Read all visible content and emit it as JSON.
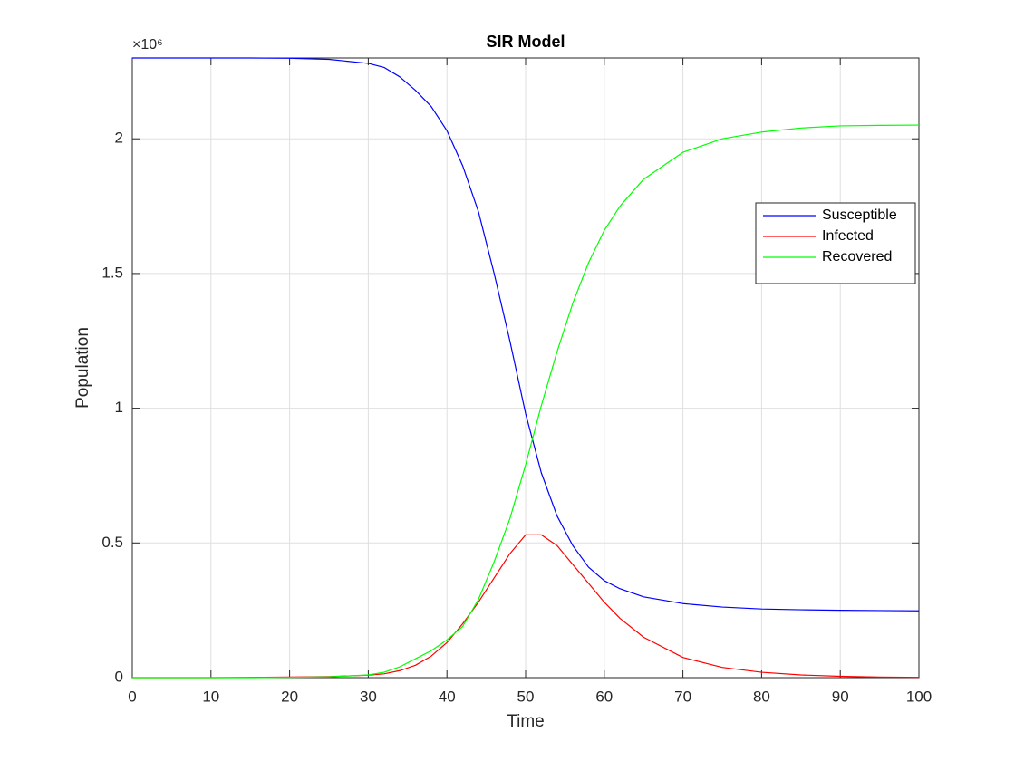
{
  "chart_data": {
    "type": "line",
    "title": "SIR Model",
    "x_label": "Time",
    "y_label": "Population",
    "y_multiplier": "×10⁶",
    "x": [
      0,
      5,
      10,
      15,
      20,
      25,
      30,
      32,
      34,
      36,
      38,
      40,
      42,
      44,
      46,
      48,
      50,
      52,
      54,
      56,
      58,
      60,
      62,
      65,
      70,
      75,
      80,
      85,
      90,
      95,
      100
    ],
    "series": [
      {
        "name": "Susceptible",
        "color": "#0000ff",
        "values": [
          2.3,
          2.3,
          2.3,
          2.3,
          2.299,
          2.295,
          2.28,
          2.265,
          2.23,
          2.18,
          2.12,
          2.03,
          1.9,
          1.73,
          1.5,
          1.25,
          0.98,
          0.76,
          0.6,
          0.49,
          0.41,
          0.36,
          0.33,
          0.3,
          0.275,
          0.262,
          0.255,
          0.252,
          0.25,
          0.249,
          0.248
        ]
      },
      {
        "name": "Infected",
        "color": "#ff0000",
        "values": [
          0,
          0,
          0,
          0.001,
          0.002,
          0.004,
          0.009,
          0.014,
          0.026,
          0.046,
          0.08,
          0.13,
          0.2,
          0.28,
          0.37,
          0.46,
          0.53,
          0.53,
          0.49,
          0.42,
          0.35,
          0.28,
          0.22,
          0.15,
          0.075,
          0.038,
          0.02,
          0.01,
          0.005,
          0.002,
          0.001
        ]
      },
      {
        "name": "Recovered",
        "color": "#00ff00",
        "values": [
          0,
          0,
          0,
          0,
          0.001,
          0.003,
          0.01,
          0.02,
          0.04,
          0.07,
          0.1,
          0.14,
          0.19,
          0.29,
          0.43,
          0.59,
          0.79,
          1.01,
          1.21,
          1.39,
          1.54,
          1.66,
          1.75,
          1.85,
          1.95,
          2.0,
          2.025,
          2.04,
          2.048,
          2.05,
          2.051
        ]
      }
    ],
    "xlim": [
      0,
      100
    ],
    "xticks": [
      0,
      10,
      20,
      30,
      40,
      50,
      60,
      70,
      80,
      90,
      100
    ],
    "ylim": [
      0,
      2.3
    ],
    "yticks": [
      0,
      0.5,
      1,
      1.5,
      2
    ],
    "grid": true,
    "legend": "northeast"
  }
}
